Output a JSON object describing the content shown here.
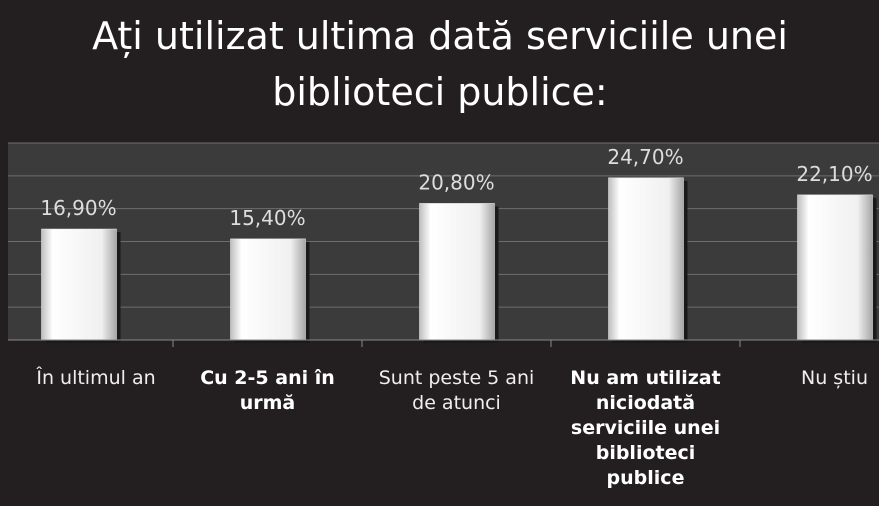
{
  "chart_data": {
    "type": "bar",
    "title": "Ați utilizat ultima dată serviciile unei biblioteci publice:",
    "categories": [
      "În ultimul an",
      "Cu 2-5 ani în urmă",
      "Sunt peste 5 ani de atunci",
      "Nu am utilizat niciodată serviciile unei biblioteci publice",
      "Nu știu"
    ],
    "label_weights": [
      "normal",
      "bold",
      "normal",
      "bold",
      "normal"
    ],
    "values": [
      16.9,
      15.4,
      20.8,
      24.7,
      22.1
    ],
    "value_labels": [
      "16,90%",
      "15,40%",
      "20,80%",
      "24,70%",
      "22,10%"
    ],
    "color": "#f2f2f2",
    "ylim": [
      0,
      30
    ],
    "yticks": [
      0,
      5,
      10,
      15,
      20,
      25,
      30
    ],
    "grid": true
  }
}
